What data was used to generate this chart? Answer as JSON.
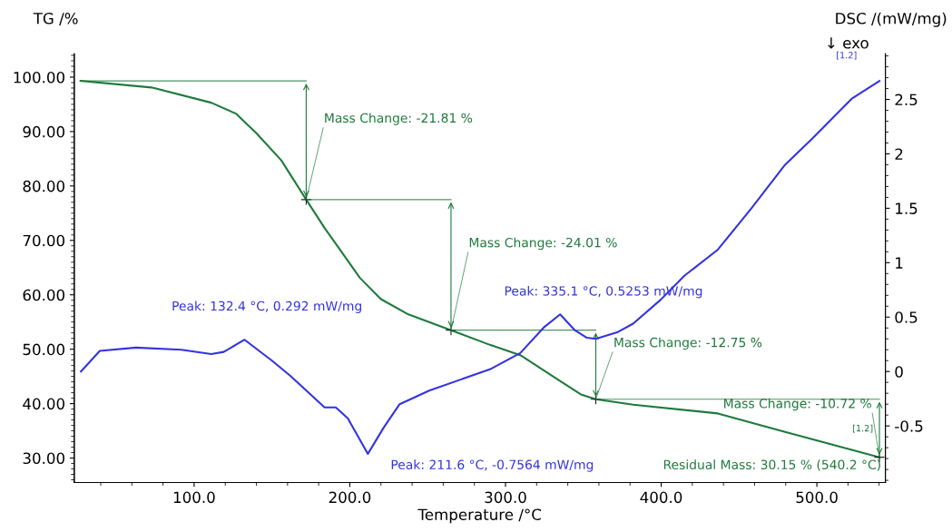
{
  "chart_data": {
    "type": "line",
    "xlabel": "Temperature /°C",
    "ylabel": "TG /%",
    "y2label": "DSC /(mW/mg)",
    "series": [
      {
        "color": "#1e7a3c",
        "x": [
          27,
          72.6,
          111,
          126.8,
          140,
          156,
          172,
          184,
          192.9,
          206.5,
          220,
          237.6,
          265,
          290,
          309.5,
          334.8,
          348.4,
          358,
          382,
          436.4,
          479.6,
          540.2
        ],
        "values": [
          99.3,
          98.1,
          95.3,
          93.3,
          89.7,
          84.7,
          77.5,
          72.2,
          68.6,
          63.1,
          59.2,
          56.4,
          53.5,
          50.8,
          48.9,
          44.2,
          41.7,
          40.8,
          39.8,
          38.2,
          34.8,
          30.15
        ]
      },
      {
        "color": "#3333e0",
        "axis": "y2",
        "x": [
          27.3,
          39.4,
          62.7,
          91.8,
          111,
          119,
          132.4,
          150,
          161.8,
          183.8,
          191,
          198.7,
          211.6,
          222,
          232,
          251,
          290,
          309.5,
          325,
          335.1,
          344.5,
          352.3,
          358,
          371.7,
          382,
          399.7,
          414.9,
          436.4,
          458,
          479.6,
          497,
          522.7,
          540.2
        ],
        "values": [
          0.0,
          0.19,
          0.22,
          0.2,
          0.16,
          0.18,
          0.292,
          0.1,
          -0.04,
          -0.33,
          -0.33,
          -0.43,
          -0.7564,
          -0.51,
          -0.3,
          -0.175,
          0.02,
          0.17,
          0.41,
          0.5253,
          0.38,
          0.31,
          0.3,
          0.36,
          0.44,
          0.66,
          0.88,
          1.12,
          1.5,
          1.9,
          2.14,
          2.51,
          2.67
        ]
      }
    ],
    "xlim": [
      23,
      544
    ],
    "xticks": [
      {
        "value": 100,
        "label": "100.0"
      },
      {
        "value": 200,
        "label": "200.0"
      },
      {
        "value": 300,
        "label": "300.0"
      },
      {
        "value": 400,
        "label": "400.0"
      },
      {
        "value": 500,
        "label": "500.0"
      }
    ],
    "ylim": [
      25.5,
      104.3
    ],
    "yticks": [
      {
        "value": 30,
        "label": "30.00"
      },
      {
        "value": 40,
        "label": "40.00"
      },
      {
        "value": 50,
        "label": "50.00"
      },
      {
        "value": 60,
        "label": "60.00"
      },
      {
        "value": 70,
        "label": "70.00"
      },
      {
        "value": 80,
        "label": "80.00"
      },
      {
        "value": 90,
        "label": "90.00"
      },
      {
        "value": 100,
        "label": "100.00"
      }
    ],
    "y2lim": [
      -1.02,
      2.92
    ],
    "y2ticks": [
      -0.5,
      0,
      0.5,
      1,
      1.5,
      2,
      2.5
    ],
    "annotations": [
      {
        "text": "Mass Change: -21.81 %",
        "x": 172,
        "y": 77.5
      },
      {
        "text": "Mass Change: -24.01 %",
        "x": 265,
        "y": 53.5
      },
      {
        "text": "Mass Change: -12.75 %",
        "x": 358,
        "y": 40.8
      },
      {
        "text": "Mass Change: -10.72 %",
        "x": 540.2,
        "y": 30.15
      },
      "Residual Mass: 30.15 % (540.2 °C)",
      "Peak: 132.4 °C, 0.292 mW/mg",
      "Peak: 211.6 °C, -0.7564 mW/mg",
      "Peak: 335.1 °C, 0.5253 mW/mg",
      "↓ exo",
      "[1.2]",
      "[1.2]"
    ],
    "grid": false,
    "marker": "none",
    "line_style": "solid"
  }
}
